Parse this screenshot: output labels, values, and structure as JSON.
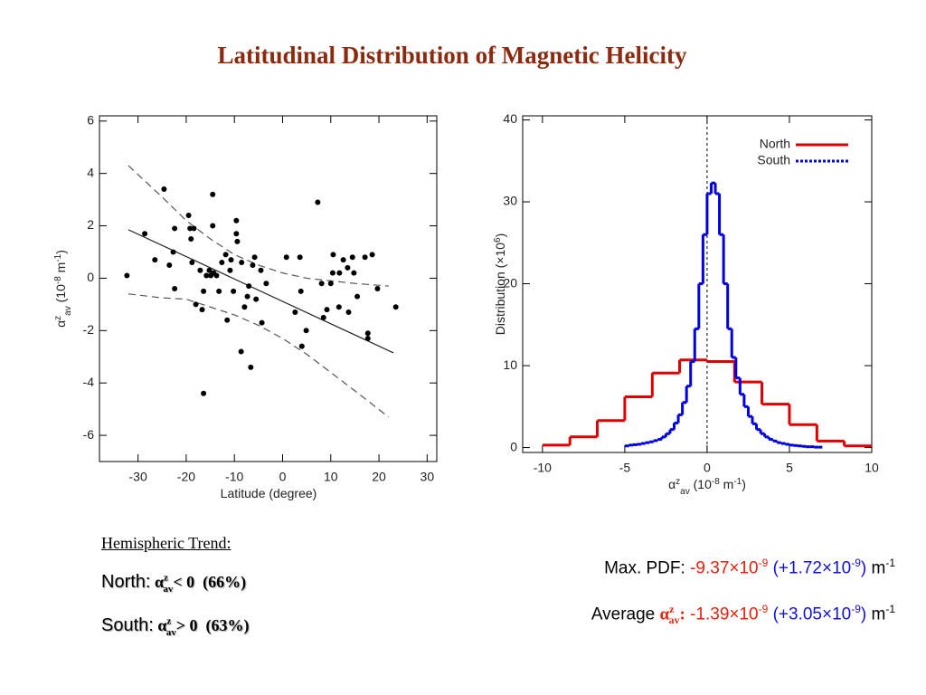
{
  "title": "Latitudinal Distribution of Magnetic Helicity",
  "chart_data": [
    {
      "type": "scatter",
      "xlabel": "Latitude (degree)",
      "ylabel": [
        {
          "text": "α"
        },
        {
          "text": "z",
          "shift": "super"
        },
        {
          "text": "av",
          "shift": "sub"
        },
        {
          "text": " (10"
        },
        {
          "text": "-8",
          "shift": "super"
        },
        {
          "text": " m"
        },
        {
          "text": "-1",
          "shift": "super"
        },
        {
          "text": ")"
        }
      ],
      "xlim": [
        -38,
        32
      ],
      "ylim": [
        -7,
        6.2
      ],
      "xticks": [
        -30,
        -20,
        -10,
        0,
        10,
        20,
        30
      ],
      "yticks": [
        -6,
        -4,
        -2,
        0,
        2,
        4,
        6
      ],
      "color": "#000000",
      "x": [
        -32.3,
        -28.6,
        -26.5,
        -24.6,
        -23.5,
        -22.7,
        -22.4,
        -22.4,
        -19.5,
        -19.2,
        -19.0,
        -18.4,
        -18.8,
        -18.0,
        -17.1,
        -16.7,
        -16.4,
        -16.4,
        -15.8,
        -15.2,
        -14.9,
        -14.5,
        -14.3,
        -13.7,
        -14.5,
        -13.2,
        -12.6,
        -11.8,
        -11.5,
        -10.9,
        -10.7,
        -10.2,
        -9.6,
        -9.6,
        -9.4,
        -8.6,
        -8.5,
        -7.9,
        -7.3,
        -7.0,
        -6.6,
        -6.2,
        -5.8,
        -5.5,
        -4.5,
        -4.3,
        -3.4,
        0.8,
        2.6,
        3.6,
        3.8,
        4.0,
        4.9,
        7.3,
        8.1,
        8.5,
        9.2,
        10.0,
        10.4,
        10.5,
        11.7,
        11.8,
        12.6,
        13.5,
        13.7,
        14.5,
        14.8,
        15.5,
        17.1,
        17.7,
        17.7,
        18.6,
        19.7,
        23.5
      ],
      "values": [
        0.1,
        1.7,
        0.7,
        3.4,
        0.5,
        1.0,
        1.9,
        -0.4,
        2.4,
        1.9,
        1.5,
        1.9,
        0.6,
        -1.0,
        0.3,
        -1.2,
        -0.5,
        -4.4,
        0.1,
        0.3,
        0.1,
        3.2,
        0.2,
        0.1,
        2.0,
        -0.5,
        0.6,
        0.9,
        -1.6,
        0.3,
        0.7,
        -0.5,
        2.2,
        1.7,
        1.4,
        -2.8,
        0.6,
        -1.1,
        -0.7,
        -0.3,
        -3.4,
        0.5,
        0.8,
        -0.8,
        0.3,
        -1.7,
        -0.2,
        0.8,
        -1.3,
        0.8,
        -0.5,
        -2.6,
        -2.0,
        2.9,
        -0.2,
        -1.5,
        -1.2,
        -0.2,
        0.2,
        0.9,
        -1.1,
        0.2,
        0.7,
        0.4,
        -1.3,
        0.8,
        0.2,
        -0.7,
        0.8,
        -2.1,
        -2.3,
        0.9,
        -0.4,
        -1.1
      ],
      "lines": [
        {
          "style": "solid",
          "x": [
            -32,
            23
          ],
          "values": [
            1.85,
            -2.85
          ]
        },
        {
          "style": "dashed",
          "x": [
            -32,
            -25,
            -20,
            -15,
            -10,
            -5,
            0,
            5,
            10,
            15,
            22
          ],
          "values": [
            4.3,
            3.1,
            2.2,
            1.5,
            0.9,
            0.5,
            0.2,
            0,
            -0.1,
            -0.2,
            -0.3
          ]
        },
        {
          "style": "dashed",
          "x": [
            -32,
            -25,
            -20,
            -15,
            -10,
            -5,
            0,
            5,
            10,
            15,
            22
          ],
          "values": [
            -0.6,
            -0.75,
            -0.8,
            -1.1,
            -1.4,
            -1.8,
            -2.3,
            -2.9,
            -3.6,
            -4.3,
            -5.3
          ]
        }
      ]
    },
    {
      "type": "histogram",
      "xlabel": [
        {
          "text": "α"
        },
        {
          "text": "z",
          "shift": "super"
        },
        {
          "text": "av",
          "shift": "sub"
        },
        {
          "text": " (10"
        },
        {
          "text": "-8",
          "shift": "super"
        },
        {
          "text": " m"
        },
        {
          "text": "-1",
          "shift": "super"
        },
        {
          "text": ")"
        }
      ],
      "ylabel": [
        {
          "text": "Distribution (×10"
        },
        {
          "text": "6",
          "shift": "super"
        },
        {
          "text": ")"
        }
      ],
      "xlim": [
        -11.2,
        10
      ],
      "ylim": [
        -0.6,
        40.5
      ],
      "xticks": [
        -10,
        -5,
        0,
        5,
        10
      ],
      "yticks": [
        0,
        10,
        20,
        30,
        40
      ],
      "vline": 0,
      "series": [
        {
          "name": "North",
          "color": "#e00000",
          "legend_line_style": "solid",
          "bins": [
            -10,
            -8.33,
            -6.67,
            -5,
            -3.33,
            -1.67,
            0,
            1.67,
            3.33,
            5,
            6.67,
            8.33,
            10
          ],
          "values": [
            0.3,
            1.3,
            3.3,
            6.2,
            9.1,
            10.7,
            10.5,
            8.0,
            5.3,
            2.8,
            0.8,
            0.2
          ]
        },
        {
          "name": "South",
          "color": "#0000e0",
          "legend_line_style": "dotted",
          "bins": [
            -5,
            -4.75,
            -4.5,
            -4.25,
            -4,
            -3.75,
            -3.5,
            -3.25,
            -3,
            -2.75,
            -2.5,
            -2.25,
            -2,
            -1.75,
            -1.5,
            -1.25,
            -1,
            -0.75,
            -0.5,
            -0.25,
            0,
            0.25,
            0.5,
            0.75,
            1,
            1.25,
            1.5,
            1.75,
            2,
            2.25,
            2.5,
            2.75,
            3,
            3.25,
            3.5,
            3.75,
            4,
            4.25,
            4.5,
            4.75,
            5,
            5.25,
            5.5,
            5.75,
            6,
            6.25,
            6.5,
            6.75,
            7
          ],
          "values": [
            0.2,
            0.3,
            0.35,
            0.4,
            0.5,
            0.6,
            0.7,
            0.85,
            1.0,
            1.3,
            1.7,
            2.2,
            3.0,
            4.0,
            5.5,
            7.5,
            10.5,
            14.5,
            20,
            26,
            31,
            32.3,
            31,
            26,
            20,
            14.5,
            11,
            8.5,
            6.5,
            5,
            3.8,
            2.9,
            2.2,
            1.7,
            1.3,
            1.0,
            0.8,
            0.6,
            0.5,
            0.4,
            0.3,
            0.25,
            0.2,
            0.15,
            0.1,
            0.1,
            0.05,
            0.05
          ]
        }
      ]
    }
  ],
  "notes": {
    "heading": "Hemispheric Trend:",
    "north": [
      {
        "text": "North:"
      },
      {
        "text": " α"
      },
      {
        "text": "z",
        "shift": "super"
      },
      {
        "text": "av",
        "shift": "sub"
      },
      {
        "text": "< 0  (66%)"
      }
    ],
    "south": [
      {
        "text": "South:"
      },
      {
        "text": " α"
      },
      {
        "text": "z",
        "shift": "super"
      },
      {
        "text": "av",
        "shift": "sub"
      },
      {
        "text": "> 0  (63%)"
      }
    ],
    "max_pdf": [
      {
        "text": "Max. PDF: "
      },
      {
        "text": "-9.37×10",
        "color": "#e8200c"
      },
      {
        "text": "-9",
        "shift": "super",
        "color": "#e8200c"
      },
      {
        "text": " (+1.72×10",
        "color": "#1010e0"
      },
      {
        "text": "-9",
        "shift": "super",
        "color": "#1010e0"
      },
      {
        "text": ")",
        "color": "#1010e0"
      },
      {
        "text": " m"
      },
      {
        "text": "-1",
        "shift": "super"
      }
    ],
    "average": [
      {
        "text": "Average "
      },
      {
        "text": "α",
        "color": "#e8200c",
        "font": "serif"
      },
      {
        "text": "z",
        "shift": "super",
        "color": "#e8200c",
        "font": "serif"
      },
      {
        "text": "av",
        "shift": "sub",
        "color": "#e8200c",
        "font": "serif"
      },
      {
        "text": ":",
        "color": "#e8200c",
        "font": "serif"
      },
      {
        "text": " -1.39×10",
        "color": "#e8200c"
      },
      {
        "text": "-9",
        "shift": "super",
        "color": "#e8200c"
      },
      {
        "text": " (+3.05×10",
        "color": "#1010e0"
      },
      {
        "text": "-9",
        "shift": "super",
        "color": "#1010e0"
      },
      {
        "text": ")",
        "color": "#1010e0"
      },
      {
        "text": " m"
      },
      {
        "text": "-1",
        "shift": "super"
      }
    ]
  }
}
